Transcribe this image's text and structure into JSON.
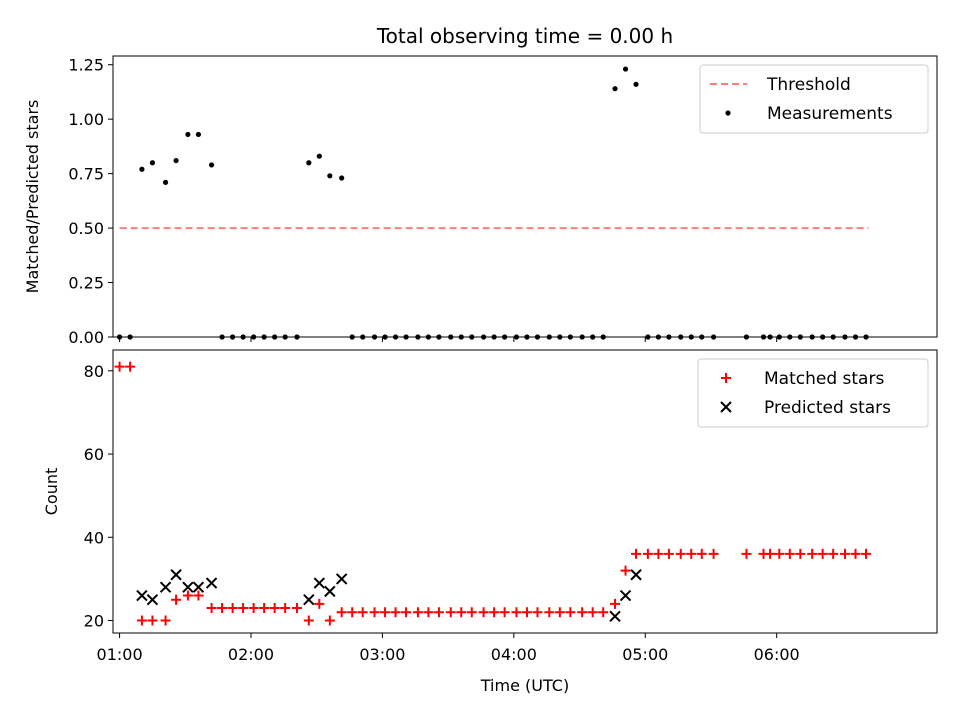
{
  "chart_data": [
    {
      "type": "scatter",
      "panel": "top",
      "title": "Total observing time = 0.00 h",
      "ylabel": "Matched/Predicted stars",
      "xlabel": "",
      "xlim": [
        0.95,
        7.22
      ],
      "ylim": [
        0,
        1.29
      ],
      "yticks": [
        0.0,
        0.25,
        0.5,
        0.75,
        1.0,
        1.25
      ],
      "ytick_labels": [
        "0.00",
        "0.25",
        "0.50",
        "0.75",
        "1.00",
        "1.25"
      ],
      "xticks": [
        1,
        2,
        3,
        4,
        5,
        6
      ],
      "grid": false,
      "legend_position": "top-right",
      "series": [
        {
          "name": "Threshold",
          "kind": "line",
          "style": "dashed",
          "color": "#ff7f7f",
          "x": [
            1.0,
            6.7
          ],
          "y": [
            0.5,
            0.5
          ]
        },
        {
          "name": "Measurements",
          "kind": "scatter",
          "color": "#000000",
          "x": [
            1.0,
            1.08,
            1.17,
            1.25,
            1.35,
            1.43,
            1.52,
            1.6,
            1.7,
            1.78,
            1.86,
            1.94,
            2.02,
            2.1,
            2.18,
            2.26,
            2.35,
            2.44,
            2.52,
            2.6,
            2.69,
            2.77,
            2.85,
            2.94,
            3.02,
            3.1,
            3.18,
            3.27,
            3.35,
            3.43,
            3.52,
            3.6,
            3.68,
            3.77,
            3.85,
            3.93,
            4.02,
            4.1,
            4.18,
            4.27,
            4.35,
            4.43,
            4.52,
            4.6,
            4.68,
            4.77,
            4.85,
            4.93,
            5.02,
            5.1,
            5.18,
            5.27,
            5.35,
            5.43,
            5.52,
            5.77,
            5.9,
            5.95,
            6.02,
            6.1,
            6.18,
            6.27,
            6.35,
            6.43,
            6.52,
            6.6,
            6.68
          ],
          "y": [
            0,
            0,
            0.77,
            0.8,
            0.71,
            0.81,
            0.93,
            0.93,
            0.79,
            0,
            0,
            0,
            0,
            0,
            0,
            0,
            0,
            0.8,
            0.83,
            0.74,
            0.73,
            0,
            0,
            0,
            0,
            0,
            0,
            0,
            0,
            0,
            0,
            0,
            0,
            0,
            0,
            0,
            0,
            0,
            0,
            0,
            0,
            0,
            0,
            0,
            0,
            1.14,
            1.23,
            1.16,
            0,
            0,
            0,
            0,
            0,
            0,
            0,
            0,
            0,
            0,
            0,
            0,
            0,
            0,
            0,
            0,
            0,
            0,
            0
          ]
        }
      ]
    },
    {
      "type": "scatter",
      "panel": "bottom",
      "title": "",
      "ylabel": "Count",
      "xlabel": "Time (UTC)",
      "xlim": [
        0.95,
        7.22
      ],
      "ylim": [
        17,
        85
      ],
      "yticks": [
        20,
        40,
        60,
        80
      ],
      "ytick_labels": [
        "20",
        "40",
        "60",
        "80"
      ],
      "xticks": [
        1,
        2,
        3,
        4,
        5,
        6
      ],
      "xtick_labels": [
        "01:00",
        "02:00",
        "03:00",
        "04:00",
        "05:00",
        "06:00"
      ],
      "grid": false,
      "legend_position": "top-right",
      "series": [
        {
          "name": "Matched stars",
          "kind": "scatter",
          "marker": "plus",
          "color": "#ff0000",
          "x": [
            1.0,
            1.08,
            1.17,
            1.25,
            1.35,
            1.43,
            1.52,
            1.6,
            1.7,
            1.78,
            1.86,
            1.94,
            2.02,
            2.1,
            2.18,
            2.26,
            2.35,
            2.44,
            2.52,
            2.6,
            2.69,
            2.77,
            2.85,
            2.94,
            3.02,
            3.1,
            3.18,
            3.27,
            3.35,
            3.43,
            3.52,
            3.6,
            3.68,
            3.77,
            3.85,
            3.93,
            4.02,
            4.1,
            4.18,
            4.27,
            4.35,
            4.43,
            4.52,
            4.6,
            4.68,
            4.77,
            4.85,
            4.93,
            5.02,
            5.1,
            5.18,
            5.27,
            5.35,
            5.43,
            5.52,
            5.77,
            5.9,
            5.95,
            6.02,
            6.1,
            6.18,
            6.27,
            6.35,
            6.43,
            6.52,
            6.6,
            6.68
          ],
          "y": [
            81,
            81,
            20,
            20,
            20,
            25,
            26,
            26,
            23,
            23,
            23,
            23,
            23,
            23,
            23,
            23,
            23,
            20,
            24,
            20,
            22,
            22,
            22,
            22,
            22,
            22,
            22,
            22,
            22,
            22,
            22,
            22,
            22,
            22,
            22,
            22,
            22,
            22,
            22,
            22,
            22,
            22,
            22,
            22,
            22,
            24,
            32,
            36,
            36,
            36,
            36,
            36,
            36,
            36,
            36,
            36,
            36,
            36,
            36,
            36,
            36,
            36,
            36,
            36,
            36,
            36,
            36
          ]
        },
        {
          "name": "Predicted stars",
          "kind": "scatter",
          "marker": "x",
          "color": "#000000",
          "x": [
            1.17,
            1.25,
            1.35,
            1.43,
            1.52,
            1.6,
            1.7,
            2.44,
            2.52,
            2.6,
            2.69,
            4.77,
            4.85,
            4.93
          ],
          "y": [
            26,
            25,
            28,
            31,
            28,
            28,
            29,
            25,
            29,
            27,
            30,
            21,
            26,
            31
          ]
        }
      ]
    }
  ]
}
